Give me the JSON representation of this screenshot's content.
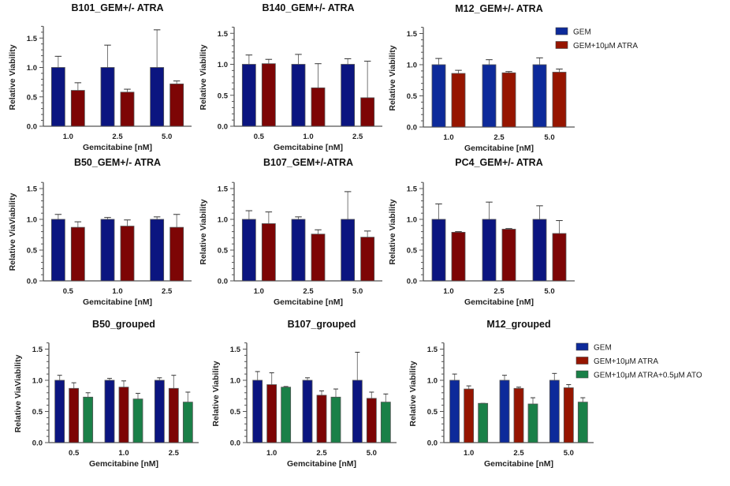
{
  "colors": {
    "GEM": "#0b1580",
    "GEM+10μM ATRA": "#7d0505",
    "GEM+10μM ATRA+0.5μM ATO": "#1a8048",
    "legend_GEM": "#0d2a9a",
    "legend_ATRA": "#961500"
  },
  "chart_data": [
    {
      "type": "bar",
      "title": "B101_GEM+/- ATRA",
      "xlabel": "Gemcitabine [nM]",
      "ylabel": "Relative Viability",
      "ylim": [
        0,
        1.7
      ],
      "yticks": [
        "0.0",
        "0.5",
        "1.0",
        "1.5"
      ],
      "categories": [
        "1.0",
        "2.5",
        "5.0"
      ],
      "series": [
        {
          "name": "GEM",
          "values": [
            1.0,
            1.0,
            1.0
          ],
          "errors": [
            0.19,
            0.38,
            0.64
          ]
        },
        {
          "name": "GEM+10μM ATRA",
          "values": [
            0.61,
            0.58,
            0.72
          ],
          "errors": [
            0.13,
            0.05,
            0.05
          ]
        }
      ]
    },
    {
      "type": "bar",
      "title": "B140_GEM+/- ATRA",
      "xlabel": "Gemcitabine [nM]",
      "ylabel": "Relative Viability",
      "ylim": [
        0,
        1.6
      ],
      "yticks": [
        "0.0",
        "0.5",
        "1.0",
        "1.5"
      ],
      "categories": [
        "0.5",
        "1.0",
        "2.5"
      ],
      "series": [
        {
          "name": "GEM",
          "values": [
            1.0,
            1.0,
            1.0
          ],
          "errors": [
            0.15,
            0.16,
            0.09
          ]
        },
        {
          "name": "GEM+10μM ATRA",
          "values": [
            1.01,
            0.62,
            0.46
          ],
          "errors": [
            0.07,
            0.39,
            0.59
          ]
        }
      ]
    },
    {
      "type": "bar",
      "title": "M12_GEM+/- ATRA",
      "xlabel": "Gemcitabine [nM]",
      "ylabel": "Relative Viability",
      "ylim": [
        0,
        1.6
      ],
      "yticks": [
        "0.0",
        "0.5",
        "1.0",
        "1.5"
      ],
      "categories": [
        "1.0",
        "2.5",
        "5.0"
      ],
      "legend": "top-right",
      "series": [
        {
          "name": "GEM",
          "values": [
            1.0,
            1.0,
            1.0
          ],
          "errors": [
            0.1,
            0.08,
            0.11
          ]
        },
        {
          "name": "GEM+10μM ATRA",
          "values": [
            0.86,
            0.87,
            0.88
          ],
          "errors": [
            0.05,
            0.02,
            0.05
          ]
        }
      ]
    },
    {
      "type": "bar",
      "title": "B50_GEM+/- ATRA",
      "xlabel": "Gemcitabine [nM]",
      "ylabel": "Relative ViaViability",
      "ylim": [
        0,
        1.6
      ],
      "yticks": [
        "0.0",
        "0.5",
        "1.0",
        "1.5"
      ],
      "categories": [
        "0.5",
        "1.0",
        "2.5"
      ],
      "series": [
        {
          "name": "GEM",
          "values": [
            1.0,
            1.0,
            1.0
          ],
          "errors": [
            0.08,
            0.03,
            0.04
          ]
        },
        {
          "name": "GEM+10μM ATRA",
          "values": [
            0.87,
            0.89,
            0.87
          ],
          "errors": [
            0.09,
            0.1,
            0.21
          ]
        }
      ]
    },
    {
      "type": "bar",
      "title": "B107_GEM+/-ATRA",
      "xlabel": "Gemcitabine [nM]",
      "ylabel": "Relative Viability",
      "ylim": [
        0,
        1.6
      ],
      "yticks": [
        "0.0",
        "0.5",
        "1.0",
        "1.5"
      ],
      "categories": [
        "1.0",
        "2.5",
        "5.0"
      ],
      "series": [
        {
          "name": "GEM",
          "values": [
            1.0,
            1.0,
            1.0
          ],
          "errors": [
            0.14,
            0.04,
            0.45
          ]
        },
        {
          "name": "GEM+10μM ATRA",
          "values": [
            0.93,
            0.76,
            0.71
          ],
          "errors": [
            0.19,
            0.07,
            0.1
          ]
        }
      ]
    },
    {
      "type": "bar",
      "title": "PC4_GEM+/- ATRA",
      "xlabel": "Gemcitabine [nM]",
      "ylabel": "Relative Viability",
      "ylim": [
        0,
        1.6
      ],
      "yticks": [
        "0.0",
        "0.5",
        "1.0",
        "1.5"
      ],
      "categories": [
        "1.0",
        "2.5",
        "5.0"
      ],
      "series": [
        {
          "name": "GEM",
          "values": [
            1.0,
            1.0,
            1.0
          ],
          "errors": [
            0.25,
            0.28,
            0.22
          ]
        },
        {
          "name": "GEM+10μM ATRA",
          "values": [
            0.79,
            0.84,
            0.77
          ],
          "errors": [
            0.01,
            0.01,
            0.21
          ]
        }
      ]
    },
    {
      "type": "bar",
      "title": "B50_grouped",
      "xlabel": "Gemcitabine [nM]",
      "ylabel": "Relative ViaViability",
      "ylim": [
        0,
        1.6
      ],
      "yticks": [
        "0.0",
        "0.5",
        "1.0",
        "1.5"
      ],
      "categories": [
        "0.5",
        "1.0",
        "2.5"
      ],
      "series": [
        {
          "name": "GEM",
          "values": [
            1.0,
            1.0,
            1.0
          ],
          "errors": [
            0.08,
            0.03,
            0.04
          ]
        },
        {
          "name": "GEM+10μM ATRA",
          "values": [
            0.87,
            0.89,
            0.87
          ],
          "errors": [
            0.09,
            0.1,
            0.21
          ]
        },
        {
          "name": "GEM+10μM ATRA+0.5μM ATO",
          "values": [
            0.73,
            0.7,
            0.65
          ],
          "errors": [
            0.07,
            0.09,
            0.16
          ]
        }
      ]
    },
    {
      "type": "bar",
      "title": "B107_grouped",
      "xlabel": "Gemcitabine [nM]",
      "ylabel": "Relative Viability",
      "ylim": [
        0,
        1.6
      ],
      "yticks": [
        "0.0",
        "0.5",
        "1.0",
        "1.5"
      ],
      "categories": [
        "1.0",
        "2.5",
        "5.0"
      ],
      "series": [
        {
          "name": "GEM",
          "values": [
            1.0,
            1.0,
            1.0
          ],
          "errors": [
            0.14,
            0.04,
            0.45
          ]
        },
        {
          "name": "GEM+10μM ATRA",
          "values": [
            0.93,
            0.76,
            0.71
          ],
          "errors": [
            0.19,
            0.07,
            0.1
          ]
        },
        {
          "name": "GEM+10μM ATRA+0.5μM ATO",
          "values": [
            0.89,
            0.73,
            0.65
          ],
          "errors": [
            0.01,
            0.13,
            0.13
          ]
        }
      ]
    },
    {
      "type": "bar",
      "title": "M12_grouped",
      "xlabel": "Gemcitabine [nM]",
      "ylabel": "Relative Viability",
      "ylim": [
        0,
        1.6
      ],
      "yticks": [
        "0.0",
        "0.5",
        "1.0",
        "1.5"
      ],
      "categories": [
        "1.0",
        "2.5",
        "5.0"
      ],
      "legend": "top-right",
      "series": [
        {
          "name": "GEM",
          "values": [
            1.0,
            1.0,
            1.0
          ],
          "errors": [
            0.1,
            0.08,
            0.11
          ]
        },
        {
          "name": "GEM+10μM ATRA",
          "values": [
            0.86,
            0.87,
            0.88
          ],
          "errors": [
            0.05,
            0.02,
            0.05
          ]
        },
        {
          "name": "GEM+10μM ATRA+0.5μM ATO",
          "values": [
            0.63,
            0.62,
            0.65
          ],
          "errors": [
            0.0,
            0.1,
            0.07
          ]
        }
      ]
    }
  ]
}
